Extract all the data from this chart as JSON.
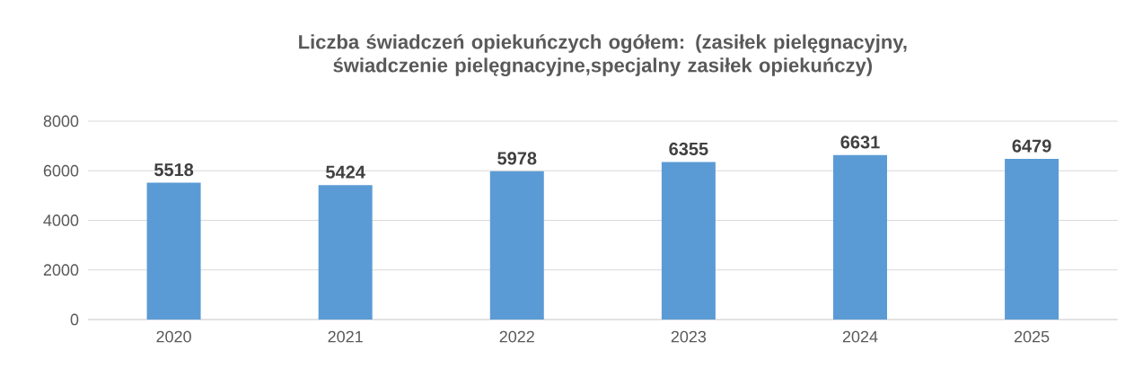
{
  "chart_data": {
    "type": "bar",
    "title": "Liczba świadczeń opiekuńczych ogółem: (zasiłek pielęgnacyjny, świadczenie pielęgnacyjne,specjalny zasiłek opiekuńczy)",
    "categories": [
      "2020",
      "2021",
      "2022",
      "2023",
      "2024",
      "2025"
    ],
    "values": [
      5518,
      5424,
      5978,
      6355,
      6631,
      6479
    ],
    "color": "#5b9bd5",
    "ylim": [
      0,
      8000
    ],
    "yticks": [
      0,
      2000,
      4000,
      6000,
      8000
    ],
    "grid": "y",
    "data_labels": true
  }
}
